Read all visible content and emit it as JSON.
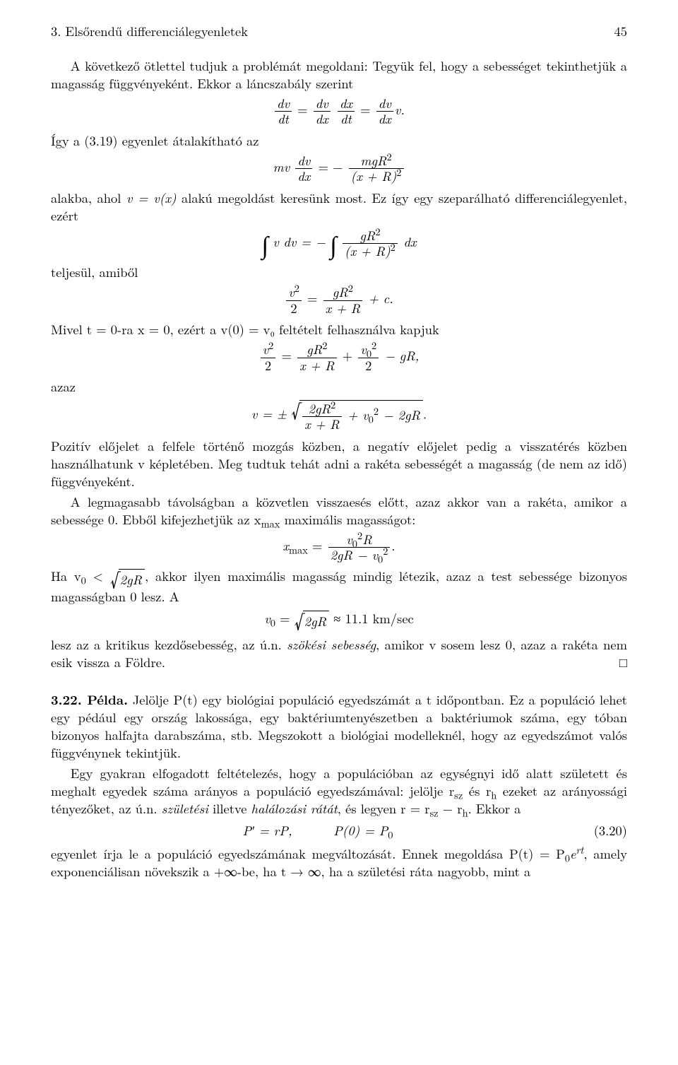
{
  "page_number": "45",
  "running_head": "3. Elsőrendű differenciálegyenletek",
  "p1": "A következő ötlettel tudjuk a problémát megoldani: Tegyük fel, hogy a sebességet tekinthetjük a magasság függvényeként. Ekkor a láncszabály szerint",
  "eq1_lhs_n": "dv",
  "eq1_lhs_d": "dt",
  "eq1_m1_n": "dv",
  "eq1_m1_d": "dx",
  "eq1_m2_n": "dx",
  "eq1_m2_d": "dt",
  "eq1_rhs_n": "dv",
  "eq1_rhs_d": "dx",
  "eq1_tail": "v.",
  "p2": "Így a (3.19) egyenlet átalakítható az",
  "eq2_pre": "mv",
  "eq2_fr_n": "dv",
  "eq2_fr_d": "dx",
  "eq2_rhs_n": "mgR",
  "eq2_rhs_n_sup": "2",
  "eq2_rhs_d": "(x + R)",
  "eq2_rhs_d_sup": "2",
  "p3a": "alakba, ahol ",
  "p3b": "v = v(x)",
  "p3c": " alakú megoldást keresünk most. Ez így egy szeparálható differenciálegyenlet, ezért",
  "eq3_l": "v dv = −",
  "eq3_r_n": "gR",
  "eq3_r_n_sup": "2",
  "eq3_r_d": "(x + R)",
  "eq3_r_d_sup": "2",
  "eq3_tail": " dx",
  "p4": "teljesül, amiből",
  "eq4_l_n": "v",
  "eq4_l_n_sup": "2",
  "eq4_l_d": "2",
  "eq4_r_n": "gR",
  "eq4_r_n_sup": "2",
  "eq4_r_d": "x + R",
  "eq4_tail": " + c.",
  "p5": "Mivel t = 0-ra x = 0, ezért a v(0) = v₀ feltételt felhasználva kapjuk",
  "eq5_l_n": "v",
  "eq5_l_n_sup": "2",
  "eq5_l_d": "2",
  "eq5_a_n": "gR",
  "eq5_a_n_sup": "2",
  "eq5_a_d": "x + R",
  "eq5_b_n": "v",
  "eq5_b_n_sub": "0",
  "eq5_b_n_sup": "2",
  "eq5_b_d": "2",
  "eq5_tail": " − gR,",
  "p6": "azaz",
  "eq6_pre": "v = ±",
  "eq6_a_n": "2gR",
  "eq6_a_n_sup": "2",
  "eq6_a_d": "x + R",
  "eq6_mid": " + v",
  "eq6_mid_sub": "0",
  "eq6_mid_sup": "2",
  "eq6_tail": " − 2gR",
  "eq6_dot": ".",
  "p7": "Pozitív előjelet a felfele történő mozgás közben, a negatív előjelet pedig a visszatérés közben használhatunk v képletében. Meg tudtuk tehát adni a rakéta sebességét a magasság (de nem az idő) függvényeként.",
  "p8": "A legmagasabb távolságban a közvetlen visszaesés előtt, azaz akkor van a rakéta, amikor a sebessége 0. Ebből kifejezhetjük az x",
  "p8_sub": "max",
  "p8b": " maximális magasságot:",
  "eq7_lhs": "x",
  "eq7_lhs_sub": "max",
  "eq7_n_a": "v",
  "eq7_n_a_sub": "0",
  "eq7_n_a_sup": "2",
  "eq7_n_b": "R",
  "eq7_d_a": "2gR − v",
  "eq7_d_a_sub": "0",
  "eq7_d_a_sup": "2",
  "eq7_tail": ".",
  "p9a": "Ha v",
  "p9a_sub": "0",
  "p9b": " < ",
  "p9_sqrt": "2gR",
  "p9c": ", akkor ilyen maximális magasság mindig létezik, azaz a test sebessége bizonyos magasságban 0 lesz. A",
  "eq8_l": "v",
  "eq8_l_sub": "0",
  "eq8_sqrt": "2gR",
  "eq8_val": " ≈ 11.1 km/sec",
  "p10a": "lesz az a kritikus kezdősebesség, az ú.n. ",
  "p10b": "szökési sebesség",
  "p10c": ", amikor v sosem lesz 0, azaz a rakéta nem esik vissza a Földre.",
  "qed": "□",
  "ex_label": "3.22. Példa.",
  "ex_p1": " Jelölje P(t) egy biológiai populáció egyedszámát a t időpontban. Ez a populáció lehet egy pédául egy ország lakossága, egy baktériumtenyészetben a baktériumok száma, egy tóban bizonyos halfajta darabszáma, stb. Megszokott a biológiai modelleknél, hogy az egyedszámot valós függvénynek tekintjük.",
  "ex_p2a": "Egy gyakran elfogadott feltételezés, hogy a populációban az egységnyi idő alatt született és meghalt egyedek száma arányos a populáció egyedszámával: jelölje r",
  "ex_p2a_sub1": "sz",
  "ex_p2b": " és r",
  "ex_p2b_sub": "h",
  "ex_p2c": " ezeket az arányossági tényezőket, az ú.n. ",
  "ex_p2d": "születési",
  "ex_p2e": " illetve ",
  "ex_p2f": "halálozási rátát",
  "ex_p2g": ", és legyen r = r",
  "ex_p2g_sub1": "sz",
  "ex_p2h": " − r",
  "ex_p2h_sub": "h",
  "ex_p2i": ". Ekkor a",
  "eq9_a": "P′ = rP,",
  "eq9_b": "P(0) = P",
  "eq9_b_sub": "0",
  "eq9_num": "(3.20)",
  "ex_p3a": "egyenlet írja le a populáció egyedszámának megváltozását. Ennek megoldása P(t) = P",
  "ex_p3a_sub": "0",
  "ex_p3b": "e",
  "ex_p3b_sup": "rt",
  "ex_p3c": ", amely exponenciálisan növekszik a +∞-be, ha t → ∞, ha a születési ráta nagyobb, mint a"
}
